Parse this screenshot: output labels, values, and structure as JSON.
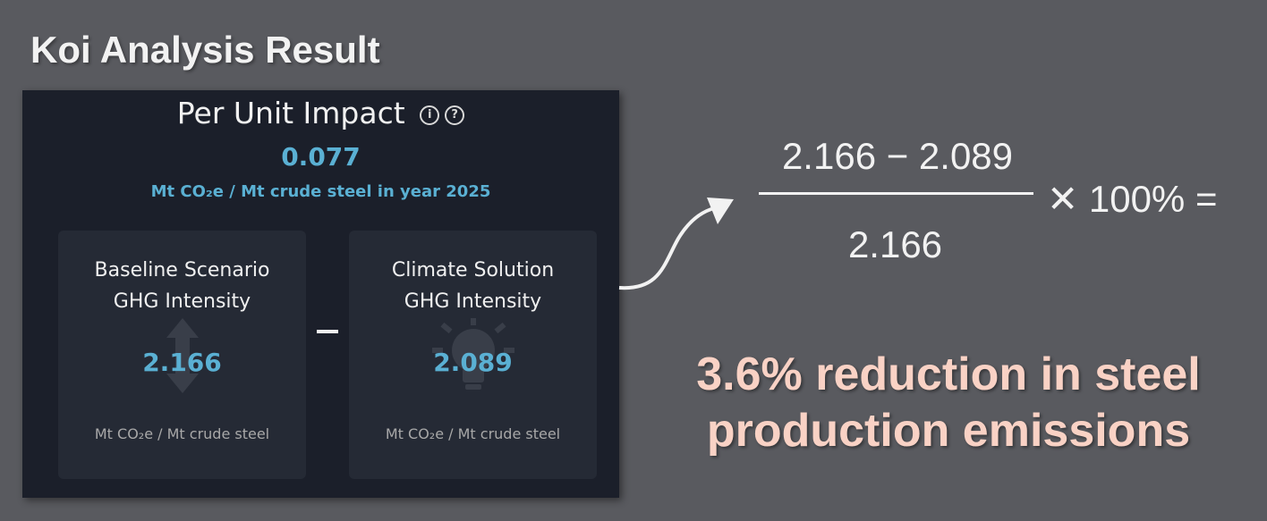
{
  "slide_title": "Koi Analysis Result",
  "panel": {
    "heading": "Per Unit Impact",
    "info_icon_glyph": "i",
    "help_icon_glyph": "?",
    "value": "0.077",
    "value_unit": "Mt CO₂e / Mt crude steel in year 2025",
    "operator": "−",
    "baseline": {
      "title_line1": "Baseline Scenario",
      "title_line2": "GHG Intensity",
      "value": "2.166",
      "unit": "Mt CO₂e / Mt crude steel",
      "background_icon": "up-down-arrow-icon"
    },
    "solution": {
      "title_line1": "Climate Solution",
      "title_line2": "GHG Intensity",
      "value": "2.089",
      "unit": "Mt CO₂e / Mt crude steel",
      "background_icon": "lightbulb-icon"
    }
  },
  "formula": {
    "numerator": "2.166 − 2.089",
    "denominator": "2.166",
    "tail": "✕ 100% ="
  },
  "conclusion": {
    "line1": "3.6% reduction in steel",
    "line2": "production emissions"
  },
  "colors": {
    "background": "#595a5f",
    "panel": "#1b1f2a",
    "card": "#252a35",
    "accent_value": "#5ab0d3",
    "conclusion_text": "#f9d2c5"
  }
}
